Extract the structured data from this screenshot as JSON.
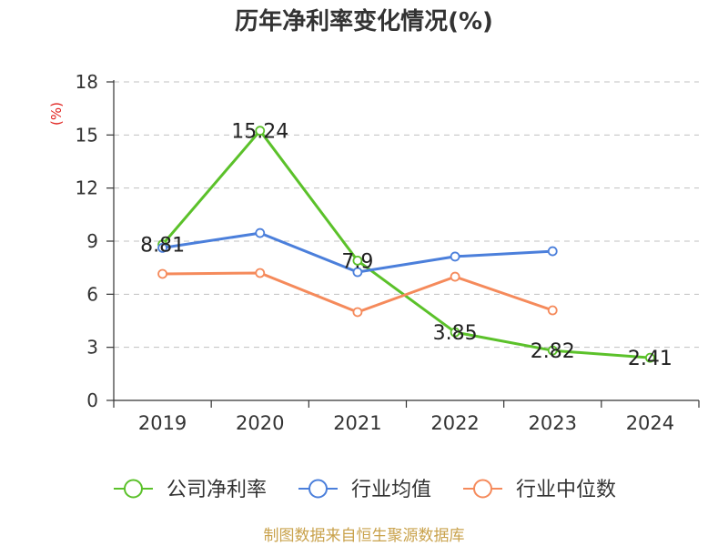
{
  "chart_data": {
    "type": "line",
    "title": "历年净利率变化情况(%)",
    "ylabel": "(%)",
    "categories": [
      "2019",
      "2020",
      "2021",
      "2022",
      "2023",
      "2024"
    ],
    "ylim": [
      0,
      18
    ],
    "yticks": [
      0,
      3,
      6,
      9,
      12,
      15,
      18
    ],
    "grid": true,
    "legend": "bottom",
    "series": [
      {
        "name": "公司净利率",
        "color": "#5bc12a",
        "show_labels": true,
        "values": [
          8.81,
          15.24,
          7.9,
          3.85,
          2.82,
          2.41
        ]
      },
      {
        "name": "行业均值",
        "color": "#4b7fdb",
        "show_labels": false,
        "values": [
          8.62,
          9.46,
          7.25,
          8.13,
          8.43,
          null
        ]
      },
      {
        "name": "行业中位数",
        "color": "#f58a5b",
        "show_labels": false,
        "values": [
          7.15,
          7.2,
          4.99,
          6.99,
          5.09,
          null
        ]
      }
    ]
  },
  "footer": {
    "source": "制图数据来自恒生聚源数据库"
  },
  "colors": {
    "ylabel": "#e0201c",
    "footer": "#c9a24c"
  }
}
